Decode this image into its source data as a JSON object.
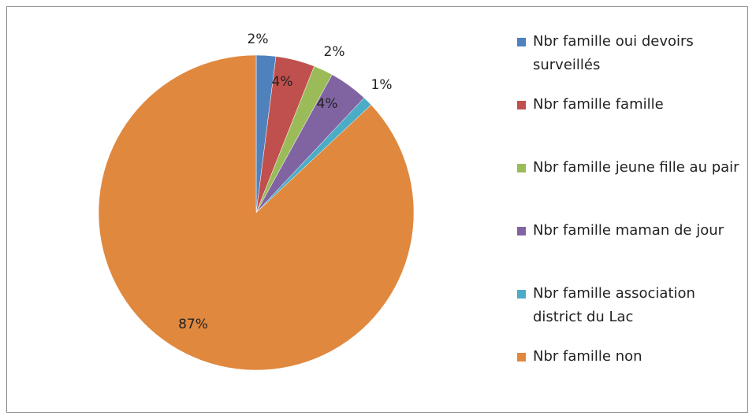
{
  "chart_data": {
    "type": "pie",
    "categories": [
      "Nbr famille oui devoirs surveillés",
      "Nbr famille famille",
      "Nbr famille jeune fille au pair",
      "Nbr famille maman de jour",
      "Nbr famille association district du Lac",
      "Nbr famille non"
    ],
    "values": [
      2,
      4,
      2,
      4,
      1,
      87
    ],
    "value_labels": [
      "2%",
      "4%",
      "2%",
      "4%",
      "1%",
      "87%"
    ],
    "colors": [
      "#4f81bd",
      "#c0504d",
      "#9bbb59",
      "#8064a2",
      "#4bacc6",
      "#e0883e"
    ]
  }
}
